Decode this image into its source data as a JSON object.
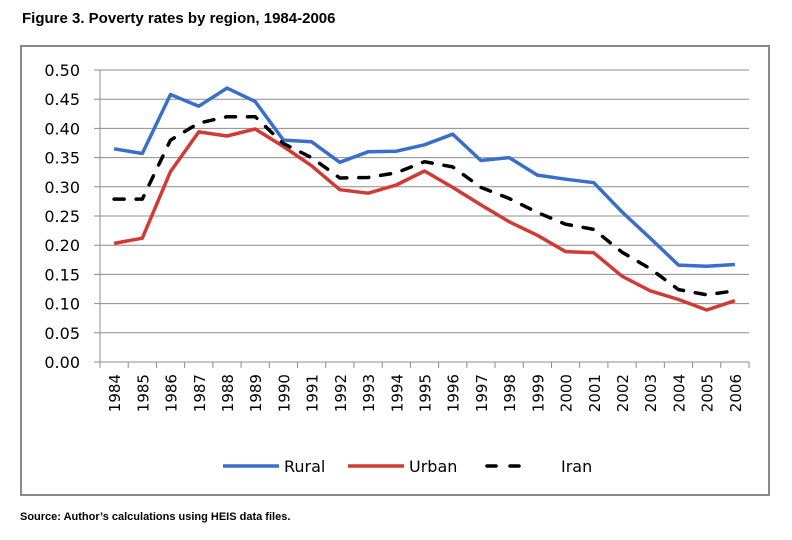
{
  "figure": {
    "title": "Figure 3.  Poverty rates by region, 1984-2006",
    "source": "Source: Author’s calculations using HEIS data files."
  },
  "chart_data": {
    "type": "line",
    "title": "Poverty rates by region, 1984-2006",
    "xlabel": "",
    "ylabel": "",
    "ylim": [
      0,
      0.5
    ],
    "yticks": [
      "0.00",
      "0.05",
      "0.10",
      "0.15",
      "0.20",
      "0.25",
      "0.30",
      "0.35",
      "0.40",
      "0.45",
      "0.50"
    ],
    "ytick_values": [
      0,
      0.05,
      0.1,
      0.15,
      0.2,
      0.25,
      0.3,
      0.35,
      0.4,
      0.45,
      0.5
    ],
    "grid": true,
    "legend_position": "bottom",
    "categories": [
      "1984",
      "1985",
      "1986",
      "1987",
      "1988",
      "1989",
      "1990",
      "1991",
      "1992",
      "1993",
      "1994",
      "1995",
      "1996",
      "1997",
      "1998",
      "1999",
      "2000",
      "2001",
      "2002",
      "2003",
      "2004",
      "2005",
      "2006"
    ],
    "series": [
      {
        "name": "Rural",
        "color": "#3a6fc9",
        "style": "solid",
        "values": [
          0.365,
          0.357,
          0.458,
          0.438,
          0.469,
          0.446,
          0.38,
          0.377,
          0.342,
          0.36,
          0.361,
          0.372,
          0.39,
          0.345,
          0.35,
          0.32,
          0.313,
          0.307,
          0.257,
          0.212,
          0.166,
          0.164,
          0.167
        ]
      },
      {
        "name": "Urban",
        "color": "#d23a35",
        "style": "solid",
        "values": [
          0.203,
          0.212,
          0.326,
          0.394,
          0.387,
          0.399,
          0.369,
          0.336,
          0.295,
          0.289,
          0.303,
          0.327,
          0.299,
          0.269,
          0.24,
          0.217,
          0.189,
          0.187,
          0.147,
          0.122,
          0.107,
          0.089,
          0.105
        ]
      },
      {
        "name": "Iran",
        "color": "#000000",
        "style": "dashed",
        "values": [
          0.279,
          0.279,
          0.38,
          0.409,
          0.42,
          0.42,
          0.374,
          0.35,
          0.315,
          0.316,
          0.324,
          0.343,
          0.334,
          0.299,
          0.28,
          0.256,
          0.236,
          0.227,
          0.188,
          0.16,
          0.124,
          0.115,
          0.122
        ]
      }
    ]
  }
}
